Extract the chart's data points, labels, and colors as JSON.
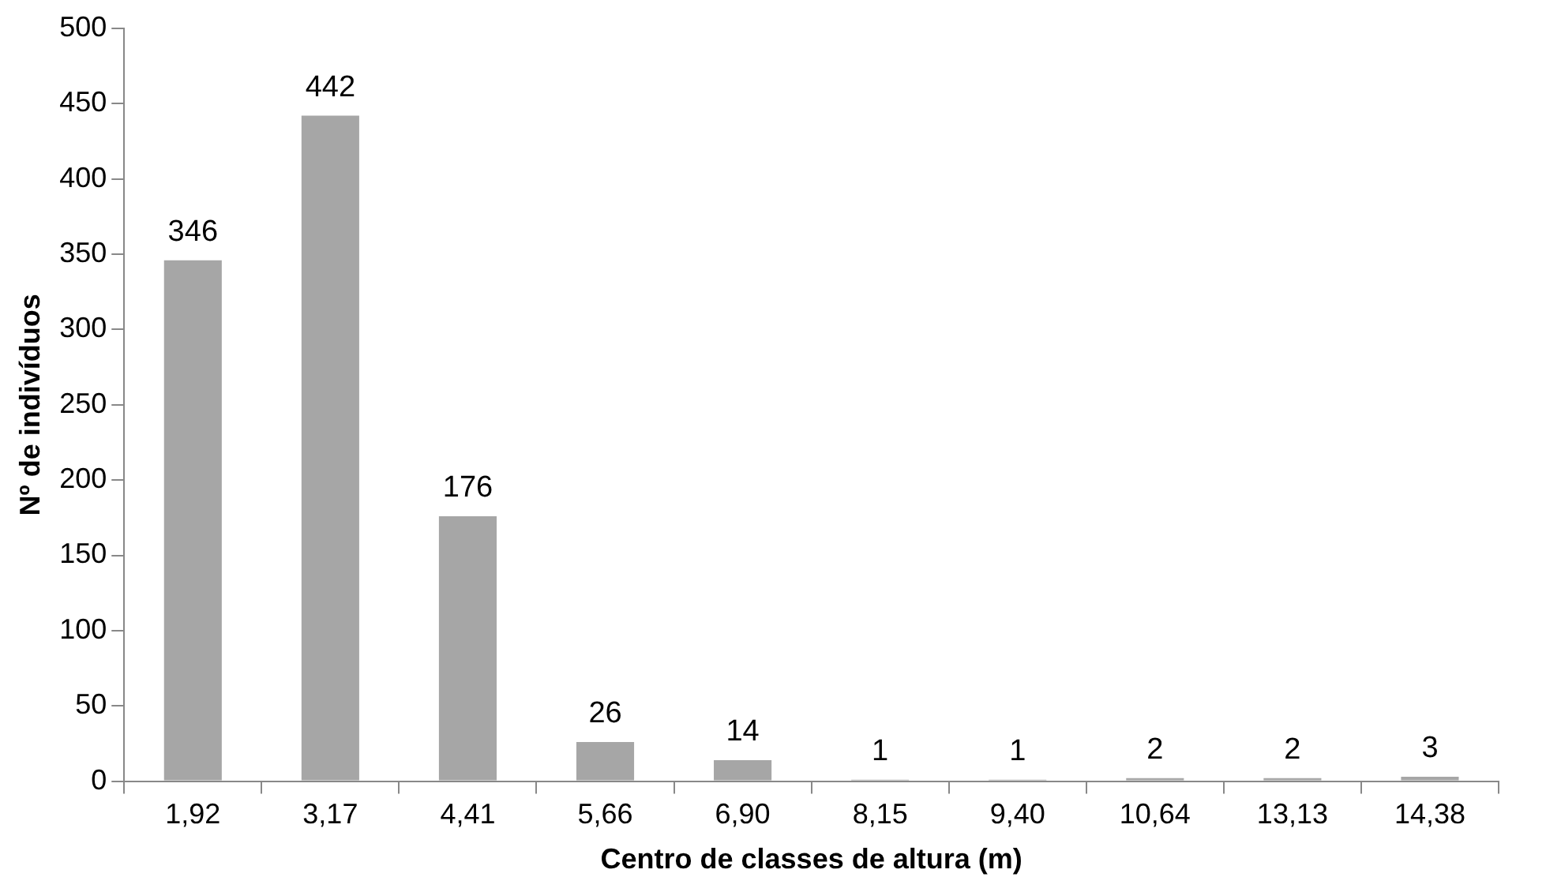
{
  "chart_data": {
    "type": "bar",
    "xlabel": "Centro de classes de altura (m)",
    "ylabel": "Nº de indivíduos",
    "categories": [
      "1,92",
      "3,17",
      "4,41",
      "5,66",
      "6,90",
      "8,15",
      "9,40",
      "10,64",
      "13,13",
      "14,38"
    ],
    "values": [
      346,
      442,
      176,
      26,
      14,
      1,
      1,
      2,
      2,
      3
    ],
    "color": "#a6a6a6",
    "ylim": [
      0,
      500
    ],
    "yticks": [
      0,
      50,
      100,
      150,
      200,
      250,
      300,
      350,
      400,
      450,
      500
    ],
    "grid": false,
    "legend": false,
    "data_labels": true
  }
}
